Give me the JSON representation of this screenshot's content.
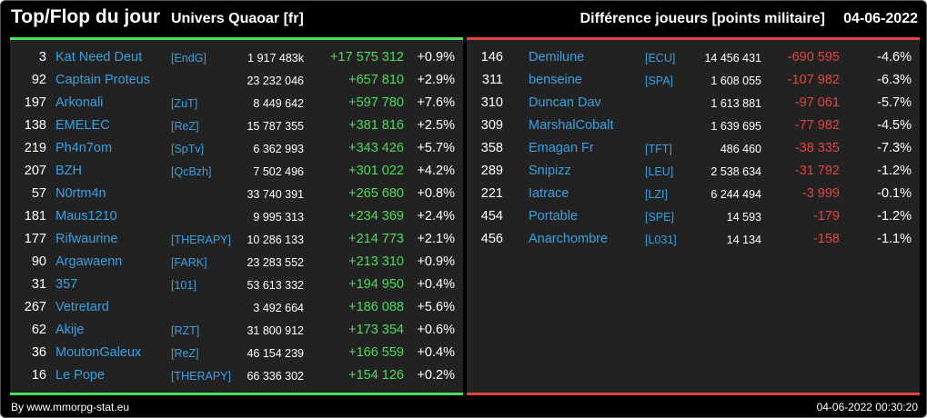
{
  "header": {
    "title": "Top/Flop du jour",
    "universe": "Univers Quaoar [fr]",
    "subtitle": "Différence joueurs [points militaire]",
    "date": "04-06-2022"
  },
  "colors": {
    "gain": "#4ade5a",
    "loss": "#e0463f",
    "link": "#3aa0e0",
    "background": "#000000",
    "panel": "#222222"
  },
  "top": [
    {
      "rank": "3",
      "name": "Kat Need Deut",
      "alliance": "[EndG]",
      "points": "1 917 483k",
      "diff": "+17 575 312",
      "pct": "+0.9%"
    },
    {
      "rank": "92",
      "name": "Captain Proteus",
      "alliance": "",
      "points": "23 232 046",
      "diff": "+657 810",
      "pct": "+2.9%"
    },
    {
      "rank": "197",
      "name": "Arkonali",
      "alliance": "[ZuT]",
      "points": "8 449 642",
      "diff": "+597 780",
      "pct": "+7.6%"
    },
    {
      "rank": "138",
      "name": "EMELEC",
      "alliance": "[ReZ]",
      "points": "15 787 355",
      "diff": "+381 816",
      "pct": "+2.5%"
    },
    {
      "rank": "219",
      "name": "Ph4n7om",
      "alliance": "[SpTv]",
      "points": "6 362 993",
      "diff": "+343 426",
      "pct": "+5.7%"
    },
    {
      "rank": "207",
      "name": "BZH",
      "alliance": "[QcBzh]",
      "points": "7 502 496",
      "diff": "+301 022",
      "pct": "+4.2%"
    },
    {
      "rank": "57",
      "name": "N0rtm4n",
      "alliance": "",
      "points": "33 740 391",
      "diff": "+265 680",
      "pct": "+0.8%"
    },
    {
      "rank": "181",
      "name": "Maus1210",
      "alliance": "",
      "points": "9 995 313",
      "diff": "+234 369",
      "pct": "+2.4%"
    },
    {
      "rank": "177",
      "name": "Rifwaurine",
      "alliance": "[THERAPY]",
      "points": "10 286 133",
      "diff": "+214 773",
      "pct": "+2.1%"
    },
    {
      "rank": "90",
      "name": "Argawaenn",
      "alliance": "[FARK]",
      "points": "23 283 552",
      "diff": "+213 310",
      "pct": "+0.9%"
    },
    {
      "rank": "31",
      "name": "357",
      "alliance": "[101]",
      "points": "53 613 332",
      "diff": "+194 950",
      "pct": "+0.4%"
    },
    {
      "rank": "267",
      "name": "Vetretard",
      "alliance": "",
      "points": "3 492 664",
      "diff": "+186 088",
      "pct": "+5.6%"
    },
    {
      "rank": "62",
      "name": "Akije",
      "alliance": "[RZT]",
      "points": "31 800 912",
      "diff": "+173 354",
      "pct": "+0.6%"
    },
    {
      "rank": "36",
      "name": "MoutonGaleux",
      "alliance": "[ReZ]",
      "points": "46 154 239",
      "diff": "+166 559",
      "pct": "+0.4%"
    },
    {
      "rank": "16",
      "name": "Le Pope",
      "alliance": "[THERAPY]",
      "points": "66 336 302",
      "diff": "+154 126",
      "pct": "+0.2%"
    }
  ],
  "flop": [
    {
      "rank": "146",
      "name": "Demilune",
      "alliance": "[ECU]",
      "points": "14 456 431",
      "diff": "-690 595",
      "pct": "-4.6%"
    },
    {
      "rank": "311",
      "name": "benseine",
      "alliance": "[SPA]",
      "points": "1 608 055",
      "diff": "-107 982",
      "pct": "-6.3%"
    },
    {
      "rank": "310",
      "name": "Duncan Dav",
      "alliance": "",
      "points": "1 613 881",
      "diff": "-97 061",
      "pct": "-5.7%"
    },
    {
      "rank": "309",
      "name": "MarshalCobalt",
      "alliance": "",
      "points": "1 639 695",
      "diff": "-77 982",
      "pct": "-4.5%"
    },
    {
      "rank": "358",
      "name": "Emagan Fr",
      "alliance": "[TFT]",
      "points": "486 460",
      "diff": "-38 335",
      "pct": "-7.3%"
    },
    {
      "rank": "289",
      "name": "Snipizz",
      "alliance": "[LEU]",
      "points": "2 538 634",
      "diff": "-31 792",
      "pct": "-1.2%"
    },
    {
      "rank": "221",
      "name": "Iatrace",
      "alliance": "[LZI]",
      "points": "6 244 494",
      "diff": "-3 999",
      "pct": "-0.1%"
    },
    {
      "rank": "454",
      "name": "Portable",
      "alliance": "[SPE]",
      "points": "14 593",
      "diff": "-179",
      "pct": "-1.2%"
    },
    {
      "rank": "456",
      "name": "Anarchombre",
      "alliance": "[L031]",
      "points": "14 134",
      "diff": "-158",
      "pct": "-1.1%"
    }
  ],
  "footer": {
    "credit": "By www.mmorpg-stat.eu",
    "timestamp": "04-06-2022 00:30:20"
  }
}
